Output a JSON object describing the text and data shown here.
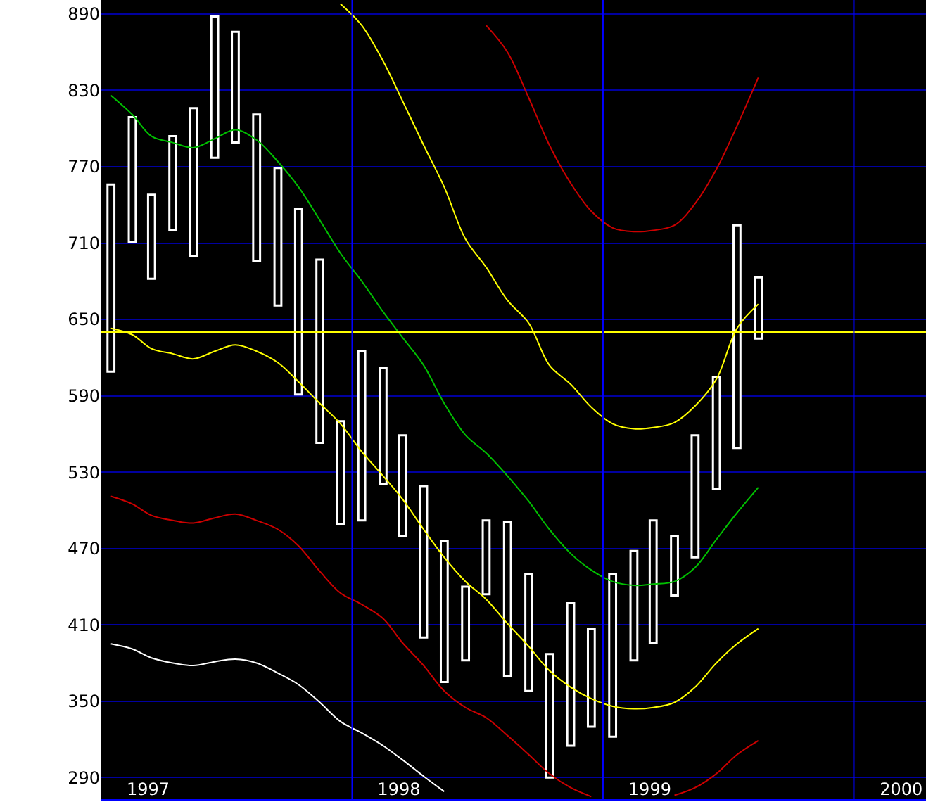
{
  "chart_data": {
    "type": "bar",
    "x": [
      "1997-01-15",
      "1997-02-15",
      "1997-03-15",
      "1997-04-15",
      "1997-05-15",
      "1997-06-15",
      "1997-07-15",
      "1997-08-15",
      "1997-09-15",
      "1997-10-15",
      "1997-11-15",
      "1997-12-15",
      "1998-01-15",
      "1998-02-15",
      "1998-03-15",
      "1998-04-15",
      "1998-05-15",
      "1998-06-15",
      "1998-07-15",
      "1998-08-15",
      "1998-09-15",
      "1998-10-15",
      "1998-11-15",
      "1998-12-15",
      "1999-01-15",
      "1999-02-15",
      "1999-03-15",
      "1999-04-15",
      "1999-05-15",
      "1999-06-15",
      "1999-07-15",
      "1999-08-15"
    ],
    "series": [
      {
        "color": "#ffffff",
        "base": [
          609,
          711,
          682,
          720,
          700,
          777,
          789,
          696,
          661,
          591,
          553,
          489,
          492,
          521,
          480,
          400,
          365,
          382,
          434,
          370,
          358,
          290,
          315,
          330,
          322,
          382,
          396,
          433,
          463,
          517,
          549,
          635
        ],
        "values": [
          147,
          98,
          66,
          74,
          116,
          111,
          87,
          115,
          108,
          146,
          144,
          81,
          133,
          91,
          79,
          119,
          111,
          58,
          58,
          121,
          92,
          97,
          112,
          77,
          128,
          86,
          96,
          47,
          96,
          88,
          175,
          48
        ]
      },
      {
        "type": "line",
        "color": "#cc0000",
        "values": [
          null,
          null,
          null,
          null,
          null,
          null,
          null,
          null,
          null,
          null,
          null,
          null,
          null,
          null,
          null,
          null,
          null,
          null,
          881,
          860,
          824,
          787,
          757,
          735,
          722,
          719,
          720,
          724,
          741,
          768,
          802,
          840
        ]
      },
      {
        "type": "line",
        "color": "#ffff00",
        "values": [
          null,
          null,
          null,
          null,
          null,
          null,
          null,
          null,
          null,
          null,
          null,
          898,
          881,
          853,
          822,
          787,
          754,
          713,
          691,
          665,
          647,
          614,
          599,
          581,
          568,
          564,
          565,
          569,
          582,
          603,
          643,
          662
        ]
      },
      {
        "type": "line",
        "color": "#00c000",
        "values": [
          826,
          811,
          794,
          789,
          785,
          792,
          799,
          791,
          774,
          754,
          728,
          702,
          680,
          656,
          636,
          614,
          584,
          559,
          545,
          527,
          507,
          485,
          466,
          453,
          444,
          441,
          442,
          444,
          455,
          477,
          498,
          518
        ]
      },
      {
        "type": "line",
        "color": "#ffff00",
        "values": [
          643,
          638,
          627,
          623,
          619,
          625,
          630,
          625,
          616,
          601,
          584,
          568,
          546,
          527,
          509,
          485,
          463,
          444,
          430,
          411,
          393,
          374,
          361,
          352,
          346,
          344,
          345,
          349,
          361,
          380,
          395,
          407
        ]
      },
      {
        "type": "line",
        "color": "#cc0000",
        "values": [
          511,
          505,
          496,
          492,
          490,
          494,
          497,
          492,
          485,
          472,
          452,
          435,
          426,
          415,
          396,
          378,
          358,
          345,
          337,
          323,
          308,
          293,
          282,
          275,
          null,
          null,
          null,
          276,
          282,
          293,
          308,
          319
        ]
      },
      {
        "type": "line",
        "color": "#ffffff",
        "values": [
          395,
          391,
          384,
          380,
          378,
          381,
          383,
          380,
          372,
          363,
          349,
          334,
          325,
          315,
          304,
          291,
          279,
          null,
          null,
          null,
          null,
          null,
          null,
          null,
          null,
          null,
          null,
          null,
          null,
          null,
          null,
          null
        ]
      }
    ],
    "xlim": [
      "1997-01",
      "2000-04-15"
    ],
    "xticks": [
      {
        "value": "1997-03-10",
        "label": "1997"
      },
      {
        "value": "1998-03-10",
        "label": "1998"
      },
      {
        "value": "1999-03-10",
        "label": "1999"
      },
      {
        "value": "2000-03-10",
        "label": "2000"
      }
    ],
    "ylim": [
      273,
      901
    ],
    "yticks": [
      290,
      350,
      410,
      470,
      530,
      590,
      650,
      710,
      770,
      830,
      890
    ],
    "ref_lines": [
      {
        "axis": "y",
        "value": 640,
        "color": "#ffff00"
      },
      {
        "axis": "x",
        "value": "1998-01-01",
        "color": "#0000ff"
      },
      {
        "axis": "x",
        "value": "1999-01-01",
        "color": "#0000ff"
      },
      {
        "axis": "x",
        "value": "2000-01-01",
        "color": "#0000ff"
      }
    ],
    "grid": "y"
  }
}
